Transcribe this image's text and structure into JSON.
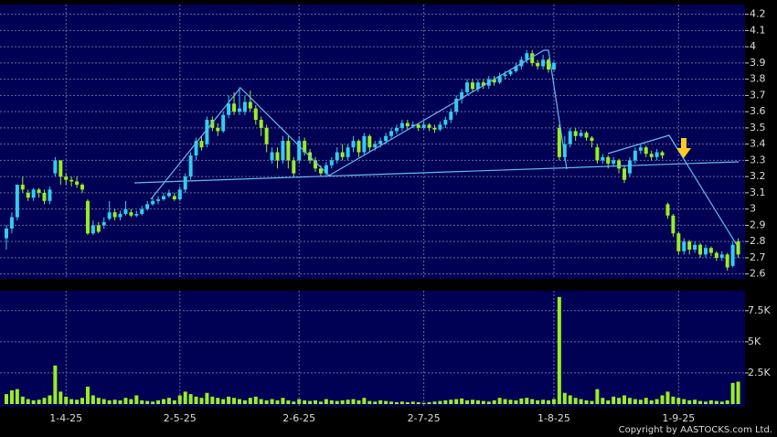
{
  "chart_data": [
    {
      "type": "candlestick",
      "up_color": "#33ccee",
      "down_color": "#99ee22",
      "ylim": [
        2.57,
        4.26
      ],
      "yticks": [
        2.6,
        2.7,
        2.8,
        2.9,
        3,
        3.1,
        3.2,
        3.3,
        3.4,
        3.5,
        3.6,
        3.7,
        3.8,
        3.9,
        4,
        4.1,
        4.2
      ],
      "grid": true,
      "categories": [
        null,
        null,
        null,
        null,
        null,
        null,
        null,
        null,
        null,
        null,
        null,
        "1-4-25",
        null,
        null,
        null,
        null,
        null,
        null,
        null,
        null,
        null,
        null,
        null,
        null,
        null,
        null,
        null,
        null,
        null,
        null,
        null,
        null,
        "2-5-25",
        null,
        null,
        null,
        null,
        null,
        null,
        null,
        null,
        null,
        null,
        null,
        null,
        null,
        null,
        null,
        null,
        null,
        null,
        null,
        null,
        null,
        "2-6-25",
        null,
        null,
        null,
        null,
        null,
        null,
        null,
        null,
        null,
        null,
        null,
        null,
        null,
        null,
        null,
        null,
        null,
        null,
        null,
        null,
        null,
        null,
        "2-7-25",
        null,
        null,
        null,
        null,
        null,
        null,
        null,
        null,
        null,
        null,
        null,
        null,
        null,
        null,
        null,
        null,
        null,
        null,
        null,
        null,
        null,
        null,
        null,
        "1-8-25",
        null,
        null,
        null,
        null,
        null,
        null,
        null,
        null,
        null,
        null,
        null,
        null,
        null,
        null,
        null,
        null,
        null,
        null,
        null,
        null,
        null,
        null,
        "1-9-25",
        null,
        null,
        null,
        null,
        null,
        null,
        null,
        null,
        null,
        null,
        null
      ],
      "open": [
        2.82,
        2.88,
        2.95,
        3.15,
        3.1,
        3.07,
        3.12,
        3.1,
        3.05,
        3.22,
        3.3,
        3.2,
        3.18,
        3.17,
        3.15,
        3.05,
        2.85,
        2.9,
        2.9,
        2.94,
        2.98,
        2.95,
        2.97,
        2.98,
        2.96,
        2.97,
        3.0,
        3.03,
        3.05,
        3.06,
        3.08,
        3.08,
        3.06,
        3.12,
        3.2,
        3.33,
        3.42,
        3.4,
        3.55,
        3.5,
        3.48,
        3.58,
        3.65,
        3.6,
        3.6,
        3.66,
        3.62,
        3.55,
        3.5,
        3.3,
        3.35,
        3.3,
        3.42,
        3.3,
        3.3,
        3.42,
        3.35,
        3.3,
        3.25,
        3.22,
        3.27,
        3.3,
        3.35,
        3.32,
        3.38,
        3.42,
        3.35,
        3.45,
        3.38,
        3.4,
        3.42,
        3.45,
        3.48,
        3.5,
        3.53,
        3.51,
        3.52,
        3.5,
        3.52,
        3.5,
        3.49,
        3.52,
        3.55,
        3.6,
        3.68,
        3.72,
        3.78,
        3.74,
        3.78,
        3.76,
        3.8,
        3.78,
        3.82,
        3.83,
        3.85,
        3.88,
        3.92,
        3.96,
        3.9,
        3.88,
        3.92,
        3.86,
        3.5,
        3.32,
        3.4,
        3.48,
        3.45,
        3.47,
        3.44,
        3.38,
        3.3,
        3.32,
        3.28,
        3.3,
        3.25,
        3.22,
        3.3,
        3.36,
        3.38,
        3.34,
        3.32,
        3.35,
        3.03,
        2.96,
        2.85,
        2.74,
        2.8,
        2.75,
        2.78,
        2.72,
        2.76,
        2.73,
        2.7,
        2.72,
        2.65,
        2.8
      ],
      "high": [
        2.9,
        2.98,
        3.15,
        3.2,
        3.12,
        3.13,
        3.13,
        3.12,
        3.14,
        3.32,
        3.3,
        3.22,
        3.2,
        3.2,
        3.16,
        3.06,
        2.93,
        2.92,
        2.95,
        3.05,
        3.0,
        2.99,
        3.05,
        3.0,
        2.99,
        3.02,
        3.05,
        3.07,
        3.08,
        3.1,
        3.12,
        3.1,
        3.14,
        3.22,
        3.35,
        3.44,
        3.45,
        3.57,
        3.57,
        3.53,
        3.6,
        3.7,
        3.72,
        3.75,
        3.7,
        3.73,
        3.64,
        3.57,
        3.52,
        3.38,
        3.38,
        3.45,
        3.45,
        3.32,
        3.45,
        3.44,
        3.37,
        3.32,
        3.27,
        3.29,
        3.32,
        3.38,
        3.4,
        3.4,
        3.45,
        3.43,
        3.47,
        3.46,
        3.42,
        3.44,
        3.47,
        3.5,
        3.52,
        3.55,
        3.55,
        3.54,
        3.53,
        3.54,
        3.53,
        3.52,
        3.54,
        3.57,
        3.62,
        3.7,
        3.74,
        3.8,
        3.8,
        3.8,
        3.8,
        3.82,
        3.82,
        3.84,
        3.85,
        3.86,
        3.9,
        3.94,
        3.98,
        3.98,
        3.92,
        3.95,
        3.93,
        3.91,
        3.52,
        3.45,
        3.5,
        3.5,
        3.49,
        3.48,
        3.45,
        3.4,
        3.34,
        3.33,
        3.32,
        3.31,
        3.27,
        3.32,
        3.38,
        3.4,
        3.39,
        3.36,
        3.37,
        3.36,
        3.04,
        2.97,
        2.86,
        2.82,
        2.81,
        2.8,
        2.79,
        2.78,
        2.77,
        2.74,
        2.74,
        2.73,
        2.8,
        2.82
      ],
      "low": [
        2.75,
        2.85,
        2.93,
        3.1,
        3.05,
        3.05,
        3.07,
        3.03,
        3.03,
        3.2,
        3.15,
        3.15,
        3.14,
        3.13,
        3.1,
        2.84,
        2.84,
        2.85,
        2.88,
        2.93,
        2.93,
        2.93,
        2.96,
        2.95,
        2.95,
        2.96,
        2.99,
        3.02,
        3.03,
        3.05,
        3.07,
        3.05,
        3.05,
        3.1,
        3.18,
        3.3,
        3.36,
        3.38,
        3.48,
        3.45,
        3.47,
        3.56,
        3.58,
        3.58,
        3.58,
        3.6,
        3.52,
        3.45,
        3.35,
        3.28,
        3.25,
        3.28,
        3.25,
        3.2,
        3.28,
        3.33,
        3.28,
        3.23,
        3.2,
        3.2,
        3.25,
        3.28,
        3.3,
        3.3,
        3.35,
        3.32,
        3.33,
        3.35,
        3.36,
        3.38,
        3.4,
        3.43,
        3.46,
        3.48,
        3.49,
        3.5,
        3.48,
        3.49,
        3.48,
        3.47,
        3.48,
        3.5,
        3.53,
        3.58,
        3.65,
        3.7,
        3.72,
        3.72,
        3.74,
        3.74,
        3.76,
        3.77,
        3.8,
        3.82,
        3.84,
        3.86,
        3.9,
        3.88,
        3.86,
        3.86,
        3.84,
        3.85,
        3.3,
        3.3,
        3.38,
        3.42,
        3.44,
        3.42,
        3.38,
        3.28,
        3.28,
        3.25,
        3.26,
        3.22,
        3.16,
        3.2,
        3.28,
        3.34,
        3.32,
        3.3,
        3.3,
        3.31,
        2.94,
        2.83,
        2.72,
        2.72,
        2.72,
        2.73,
        2.7,
        2.7,
        2.71,
        2.68,
        2.68,
        2.62,
        2.64,
        2.7
      ],
      "close": [
        2.88,
        2.95,
        3.15,
        3.12,
        3.07,
        3.12,
        3.1,
        3.05,
        3.12,
        3.3,
        3.2,
        3.18,
        3.17,
        3.15,
        3.12,
        2.85,
        2.9,
        2.86,
        2.92,
        2.98,
        2.95,
        2.97,
        3.0,
        2.96,
        2.97,
        3.0,
        3.03,
        3.05,
        3.06,
        3.08,
        3.1,
        3.06,
        3.12,
        3.2,
        3.33,
        3.42,
        3.38,
        3.55,
        3.5,
        3.48,
        3.58,
        3.65,
        3.6,
        3.62,
        3.66,
        3.62,
        3.55,
        3.5,
        3.4,
        3.35,
        3.3,
        3.42,
        3.3,
        3.22,
        3.42,
        3.35,
        3.3,
        3.25,
        3.22,
        3.27,
        3.3,
        3.35,
        3.32,
        3.38,
        3.42,
        3.35,
        3.45,
        3.38,
        3.4,
        3.42,
        3.45,
        3.48,
        3.5,
        3.53,
        3.51,
        3.52,
        3.5,
        3.52,
        3.5,
        3.49,
        3.52,
        3.55,
        3.6,
        3.68,
        3.72,
        3.78,
        3.74,
        3.78,
        3.76,
        3.8,
        3.78,
        3.82,
        3.83,
        3.85,
        3.88,
        3.92,
        3.96,
        3.9,
        3.88,
        3.92,
        3.86,
        3.9,
        3.32,
        3.4,
        3.48,
        3.45,
        3.47,
        3.44,
        3.42,
        3.3,
        3.32,
        3.28,
        3.3,
        3.25,
        3.18,
        3.3,
        3.36,
        3.38,
        3.34,
        3.32,
        3.35,
        3.33,
        2.96,
        2.85,
        2.74,
        2.8,
        2.75,
        2.78,
        2.72,
        2.76,
        2.73,
        2.7,
        2.72,
        2.64,
        2.78,
        2.72
      ]
    },
    {
      "type": "bar",
      "color": "#99ee22",
      "ylim": [
        0,
        9100
      ],
      "yticks": [
        {
          "value": 2500,
          "label": "2.5K"
        },
        {
          "value": 5000,
          "label": "5K"
        },
        {
          "value": 7500,
          "label": "7.5K"
        }
      ],
      "grid": true,
      "values": [
        800,
        1100,
        1200,
        600,
        400,
        300,
        350,
        500,
        700,
        3100,
        1000,
        600,
        400,
        350,
        500,
        1400,
        700,
        500,
        400,
        300,
        350,
        300,
        500,
        400,
        700,
        300,
        250,
        200,
        300,
        400,
        500,
        300,
        700,
        1000,
        800,
        600,
        500,
        900,
        600,
        500,
        400,
        600,
        500,
        400,
        300,
        500,
        600,
        400,
        300,
        400,
        300,
        500,
        300,
        200,
        400,
        300,
        250,
        300,
        200,
        400,
        300,
        250,
        300,
        350,
        400,
        300,
        500,
        250,
        200,
        300,
        250,
        200,
        150,
        200,
        150,
        200,
        150,
        100,
        150,
        200,
        250,
        300,
        350,
        400,
        450,
        300,
        350,
        300,
        250,
        200,
        300,
        500,
        400,
        350,
        300,
        450,
        500,
        400,
        300,
        350,
        300,
        400,
        8600,
        900,
        700,
        500,
        400,
        300,
        250,
        1200,
        500,
        300,
        600,
        500,
        700,
        500,
        400,
        350,
        500,
        300,
        400,
        700,
        1000,
        600,
        500,
        400,
        300,
        350,
        250,
        200,
        300,
        250,
        200,
        300,
        1700,
        1800
      ],
      "footer": "Copyright by AASTOCKS.com Ltd."
    }
  ]
}
